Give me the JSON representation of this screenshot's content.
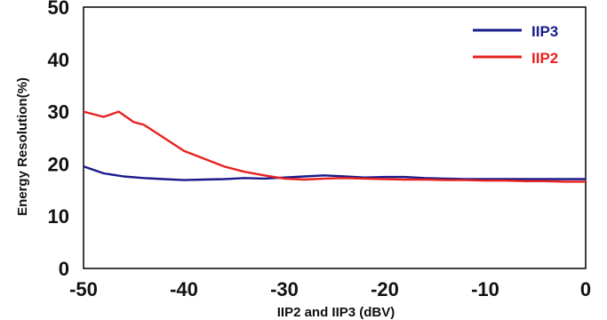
{
  "chart_data": {
    "type": "line",
    "title": "",
    "xlabel": "IIP2 and IIP3 (dBV)",
    "ylabel": "Energy Resolution(%)",
    "xlim": [
      -50,
      0
    ],
    "ylim": [
      0,
      50
    ],
    "x_ticks": [
      "-50",
      "-40",
      "-30",
      "-20",
      "-10",
      "0"
    ],
    "y_ticks": [
      "0",
      "10",
      "20",
      "30",
      "40",
      "50"
    ],
    "grid": false,
    "legend_position": "top-right",
    "series": [
      {
        "name": "IIP3",
        "color": "#1a1a8c",
        "x": [
          -50,
          -48,
          -46,
          -44,
          -42,
          -40,
          -38,
          -36,
          -34,
          -32,
          -30,
          -28,
          -26,
          -24,
          -22,
          -20,
          -18,
          -16,
          -14,
          -12,
          -10,
          -8,
          -6,
          -4,
          -2,
          0
        ],
        "y": [
          19.5,
          18.2,
          17.6,
          17.3,
          17.1,
          16.9,
          17.0,
          17.1,
          17.3,
          17.2,
          17.4,
          17.6,
          17.8,
          17.6,
          17.4,
          17.5,
          17.5,
          17.3,
          17.2,
          17.1,
          17.1,
          17.1,
          17.1,
          17.1,
          17.1,
          17.1
        ]
      },
      {
        "name": "IIP2",
        "color": "#e8221f",
        "x": [
          -50,
          -48,
          -46.5,
          -45,
          -44,
          -42,
          -40,
          -38,
          -36,
          -34,
          -32,
          -30,
          -28,
          -26,
          -24,
          -22,
          -20,
          -18,
          -16,
          -14,
          -12,
          -10,
          -8,
          -6,
          -4,
          -2,
          0
        ],
        "y": [
          30.0,
          29.0,
          30.0,
          28.0,
          27.5,
          25.0,
          22.5,
          21.0,
          19.5,
          18.5,
          17.8,
          17.2,
          17.0,
          17.2,
          17.3,
          17.2,
          17.1,
          17.0,
          17.0,
          16.9,
          16.9,
          16.8,
          16.8,
          16.7,
          16.7,
          16.6,
          16.6
        ]
      }
    ]
  }
}
